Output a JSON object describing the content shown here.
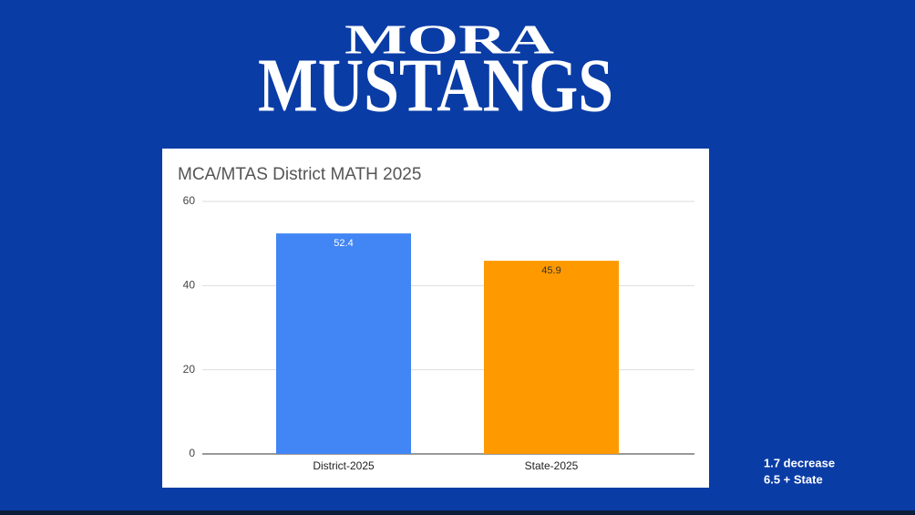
{
  "logo": {
    "line1": "MORA",
    "line2": "MUSTANGS"
  },
  "notes": [
    "1.7 decrease",
    "6.5 + State"
  ],
  "chart_data": {
    "type": "bar",
    "title": "MCA/MTAS District MATH 2025",
    "categories": [
      "District-2025",
      "State-2025"
    ],
    "values": [
      52.4,
      45.9
    ],
    "colors": [
      "#4285f4",
      "#ff9900"
    ],
    "ylim": [
      0,
      60
    ],
    "yticks": [
      0,
      20,
      40,
      60
    ],
    "grid": true
  }
}
